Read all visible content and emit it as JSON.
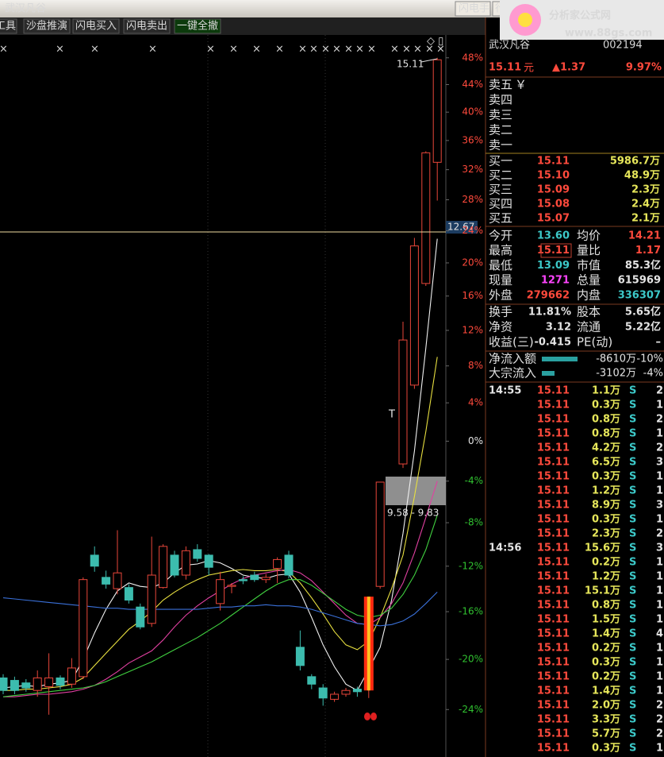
{
  "window": {
    "title": "武汉凡谷",
    "buttons": [
      "闪电手",
      "行"
    ]
  },
  "logo": {
    "name": "分析家公式网",
    "url": "www.88gs.com"
  },
  "toolbar": [
    "工具",
    "沙盘推演",
    "闪电买入",
    "闪电卖出",
    "一键全撤"
  ],
  "chart": {
    "type": "candlestick",
    "log_scale": true,
    "grid": false,
    "ylim": [
      -27.6,
      51.5
    ],
    "yticks": [
      {
        "value": 48,
        "label": "48%"
      },
      {
        "value": 44,
        "label": "44%"
      },
      {
        "value": 40,
        "label": "40%"
      },
      {
        "value": 36,
        "label": "36%"
      },
      {
        "value": 32,
        "label": "32%"
      },
      {
        "value": 28,
        "label": "28%"
      },
      {
        "value": 24,
        "label": "24%"
      },
      {
        "value": 20,
        "label": "20%"
      },
      {
        "value": 16,
        "label": "16%"
      },
      {
        "value": 12,
        "label": "12%"
      },
      {
        "value": 8,
        "label": "8%"
      },
      {
        "value": 4,
        "label": "4%"
      },
      {
        "value": 0,
        "label": "0%"
      },
      {
        "value": -4,
        "label": "-4%"
      },
      {
        "value": -8,
        "label": "-8%"
      },
      {
        "value": -12,
        "label": "-12%"
      },
      {
        "value": -16,
        "label": "-16%"
      },
      {
        "value": -20,
        "label": "-20%"
      },
      {
        "value": -24,
        "label": "-24%"
      }
    ],
    "up_color": "#e8463a",
    "down_color": "#3cbcae",
    "candles": [
      {
        "o": -21.5,
        "h": -21.2,
        "l": -22.8,
        "c": -22.5
      },
      {
        "o": -21.7,
        "h": -21.4,
        "l": -22.8,
        "c": -22.5
      },
      {
        "o": -21.9,
        "h": -21.6,
        "l": -22.6,
        "c": -22.3
      },
      {
        "o": -22.5,
        "h": -20.9,
        "l": -23.0,
        "c": -21.5
      },
      {
        "o": -22.2,
        "h": -19.5,
        "l": -24.4,
        "c": -21.5
      },
      {
        "o": -21.5,
        "h": -21.3,
        "l": -22.4,
        "c": -22.1
      },
      {
        "o": -22.0,
        "h": -19.9,
        "l": -22.3,
        "c": -20.7
      },
      {
        "o": -21.4,
        "h": -13.0,
        "l": -21.6,
        "c": -13.2
      },
      {
        "o": -11.0,
        "h": -10.2,
        "l": -12.5,
        "c": -12.0
      },
      {
        "o": -13.0,
        "h": -12.4,
        "l": -14.0,
        "c": -13.6
      },
      {
        "o": -14.0,
        "h": -8.7,
        "l": -14.5,
        "c": -12.6
      },
      {
        "o": -13.9,
        "h": -13.6,
        "l": -15.3,
        "c": -15.0
      },
      {
        "o": -15.6,
        "h": -15.3,
        "l": -17.5,
        "c": -17.3
      },
      {
        "o": -17.0,
        "h": -9.3,
        "l": -17.3,
        "c": -12.8
      },
      {
        "o": -13.9,
        "h": -10.0,
        "l": -14.0,
        "c": -10.2
      },
      {
        "o": -11.0,
        "h": -10.6,
        "l": -13.0,
        "c": -12.8
      },
      {
        "o": -12.8,
        "h": -10.2,
        "l": -13.2,
        "c": -10.6
      },
      {
        "o": -10.5,
        "h": -10.0,
        "l": -11.6,
        "c": -11.3
      },
      {
        "o": -11.0,
        "h": -10.9,
        "l": -12.8,
        "c": -12.1
      },
      {
        "o": -15.3,
        "h": -12.5,
        "l": -15.9,
        "c": -13.2
      },
      {
        "o": -13.8,
        "h": -13.5,
        "l": -14.4,
        "c": -13.7
      },
      {
        "o": -13.2,
        "h": -12.9,
        "l": -13.6,
        "c": -13.3
      },
      {
        "o": -12.8,
        "h": -12.5,
        "l": -13.4,
        "c": -13.2
      },
      {
        "o": -13.2,
        "h": -12.7,
        "l": -13.5,
        "c": -13.0
      },
      {
        "o": -12.2,
        "h": -11.2,
        "l": -13.5,
        "c": -11.4
      },
      {
        "o": -11.0,
        "h": -10.6,
        "l": -13.1,
        "c": -12.8
      },
      {
        "o": -19.0,
        "h": -17.6,
        "l": -20.9,
        "c": -20.5
      },
      {
        "o": -21.4,
        "h": -21.2,
        "l": -22.4,
        "c": -22.0
      },
      {
        "o": -22.3,
        "h": -22.0,
        "l": -23.7,
        "c": -23.1
      },
      {
        "o": -23.2,
        "h": -22.6,
        "l": -23.4,
        "c": -22.8
      },
      {
        "o": -22.8,
        "h": -22.3,
        "l": -23.0,
        "c": -22.5
      },
      {
        "o": -22.4,
        "h": -22.2,
        "l": -23.0,
        "c": -22.6
      },
      {
        "o": -22.5,
        "h": -14.7,
        "l": -23.1,
        "c": -14.7,
        "highlight": true
      },
      {
        "o": -13.8,
        "h": -4.1,
        "l": -14.0,
        "c": -4.1
      },
      null,
      {
        "o": -2.3,
        "h": 13.0,
        "l": -2.7,
        "c": 10.9
      },
      {
        "o": 5.9,
        "h": 23.1,
        "l": 5.5,
        "c": 22.1
      },
      {
        "o": 17.5,
        "h": 34.5,
        "l": 17.2,
        "c": 34.3
      },
      {
        "o": 33.0,
        "h": 48.0,
        "l": 27.9,
        "c": 47.7
      }
    ],
    "series": [
      {
        "color": "#f0f0f0",
        "values": [
          -22.3,
          -22.2,
          -22.1,
          -22.2,
          -22.0,
          -21.9,
          -21.7,
          -20.0,
          -17.8,
          -15.8,
          -14.2,
          -13.5,
          -13.8,
          -13.9,
          -13.5,
          -12.6,
          -11.9,
          -11.8,
          -11.5,
          -11.7,
          -12.2,
          -12.8,
          -13.0,
          -13.1,
          -12.8,
          -12.7,
          -14.3,
          -16.5,
          -18.8,
          -20.6,
          -22.0,
          -22.5,
          -20.8,
          -19.0,
          -15.0,
          -9.0,
          -1.0,
          10.0,
          23.0
        ]
      },
      {
        "color": "#e8e040",
        "values": [
          -22.5,
          -22.5,
          -22.4,
          -22.4,
          -22.3,
          -22.2,
          -22.0,
          -21.5,
          -20.5,
          -19.5,
          -18.5,
          -17.5,
          -16.8,
          -16.0,
          -15.0,
          -14.3,
          -13.7,
          -13.2,
          -12.8,
          -12.6,
          -12.4,
          -12.3,
          -12.4,
          -12.4,
          -12.3,
          -12.5,
          -13.5,
          -14.8,
          -16.2,
          -17.7,
          -18.8,
          -19.2,
          -18.5,
          -16.5,
          -14.0,
          -11.0,
          -5.5,
          1.0,
          9.0
        ]
      },
      {
        "color": "#e040a0",
        "values": [
          -23.0,
          -23.0,
          -22.9,
          -22.8,
          -22.8,
          -22.7,
          -22.6,
          -22.4,
          -22.1,
          -21.6,
          -21.0,
          -20.3,
          -19.8,
          -19.3,
          -18.4,
          -17.3,
          -16.3,
          -15.5,
          -14.8,
          -14.2,
          -13.6,
          -13.1,
          -12.8,
          -12.6,
          -12.4,
          -12.3,
          -12.6,
          -13.3,
          -14.3,
          -15.3,
          -16.3,
          -17.0,
          -17.1,
          -16.5,
          -15.3,
          -13.5,
          -10.8,
          -7.5,
          -4.0
        ]
      },
      {
        "color": "#40d040",
        "values": [
          -23.0,
          -22.9,
          -22.8,
          -22.7,
          -22.6,
          -22.5,
          -22.4,
          -22.3,
          -22.1,
          -21.8,
          -21.4,
          -21.0,
          -20.6,
          -20.2,
          -19.7,
          -19.2,
          -18.7,
          -18.2,
          -17.6,
          -17.0,
          -16.3,
          -15.6,
          -14.9,
          -14.2,
          -13.6,
          -13.2,
          -13.2,
          -13.7,
          -14.4,
          -15.1,
          -15.8,
          -16.3,
          -16.5,
          -16.3,
          -15.7,
          -14.5,
          -12.8,
          -10.5,
          -7.3
        ]
      },
      {
        "color": "#3a70d8",
        "values": [
          -14.8,
          -14.9,
          -15.0,
          -15.1,
          -15.2,
          -15.3,
          -15.4,
          -15.5,
          -15.6,
          -15.7,
          -15.7,
          -15.8,
          -15.8,
          -15.8,
          -15.8,
          -15.8,
          -15.8,
          -15.8,
          -15.7,
          -15.6,
          -15.6,
          -15.5,
          -15.5,
          -15.4,
          -15.5,
          -15.5,
          -15.6,
          -15.8,
          -16.1,
          -16.4,
          -16.7,
          -17.0,
          -17.1,
          -17.2,
          -17.1,
          -16.8,
          -16.2,
          -15.3,
          -14.3
        ]
      }
    ],
    "high_label": "15.11",
    "price_line_label": "12.67",
    "signal": "T",
    "range_label": "9.58 - 9.83"
  },
  "stock": {
    "name": "武汉凡谷",
    "code": "002194"
  },
  "quote": {
    "price": "15.11",
    "unit": "元",
    "change": "▲1.37",
    "pct": "9.97%"
  },
  "sell": [
    "卖五",
    "卖四",
    "卖三",
    "卖二",
    "卖一"
  ],
  "sell_icon": "￥",
  "buy": [
    [
      "买一",
      "15.11",
      "5986.7万"
    ],
    [
      "买二",
      "15.10",
      "48.9万"
    ],
    [
      "买三",
      "15.09",
      "2.3万"
    ],
    [
      "买四",
      "15.08",
      "2.4万"
    ],
    [
      "买五",
      "15.07",
      "2.1万"
    ]
  ],
  "stats": [
    [
      "今开",
      "13.60",
      "均价",
      "14.21"
    ],
    [
      "最高",
      "15.11",
      "量比",
      "1.17"
    ],
    [
      "最低",
      "13.09",
      "市值",
      "85.3亿"
    ],
    [
      "现量",
      "1271",
      "总量",
      "615969"
    ],
    [
      "外盘",
      "279662",
      "内盘",
      "336307"
    ]
  ],
  "finance": [
    [
      "换手",
      "11.81%",
      "股本",
      "5.65亿"
    ],
    [
      "净资",
      "3.12",
      "流通",
      "5.22亿"
    ],
    [
      "收益(三)",
      "-0.415",
      "PE(动)",
      "–"
    ]
  ],
  "flows": [
    [
      "净流入额",
      "-8610万",
      "-10%"
    ],
    [
      "大宗流入",
      "-3102万",
      "-4%"
    ]
  ],
  "ticks": [
    {
      "time": "14:55",
      "rows": [
        [
          "15.11",
          "1.1万",
          "S",
          "2"
        ],
        [
          "15.11",
          "0.3万",
          "S",
          "1"
        ],
        [
          "15.11",
          "0.8万",
          "S",
          "2"
        ],
        [
          "15.11",
          "0.8万",
          "S",
          "1"
        ],
        [
          "15.11",
          "4.2万",
          "S",
          "2"
        ],
        [
          "15.11",
          "6.5万",
          "S",
          "3"
        ],
        [
          "15.11",
          "0.3万",
          "S",
          "1"
        ],
        [
          "15.11",
          "1.2万",
          "S",
          "1"
        ],
        [
          "15.11",
          "8.9万",
          "S",
          "3"
        ],
        [
          "15.11",
          "0.3万",
          "S",
          "1"
        ],
        [
          "15.11",
          "2.3万",
          "S",
          "2"
        ]
      ]
    },
    {
      "time": "14:56",
      "rows": [
        [
          "15.11",
          "15.6万",
          "S",
          "3"
        ],
        [
          "15.11",
          "0.2万",
          "S",
          "1"
        ],
        [
          "15.11",
          "1.2万",
          "S",
          "1"
        ],
        [
          "15.11",
          "15.1万",
          "S",
          "1"
        ],
        [
          "15.11",
          "0.8万",
          "S",
          "1"
        ],
        [
          "15.11",
          "1.5万",
          "S",
          "1"
        ],
        [
          "15.11",
          "1.4万",
          "S",
          "4"
        ],
        [
          "15.11",
          "0.2万",
          "S",
          "1"
        ],
        [
          "15.11",
          "0.3万",
          "S",
          "1"
        ],
        [
          "15.11",
          "0.2万",
          "S",
          "1"
        ],
        [
          "15.11",
          "1.4万",
          "S",
          "1"
        ],
        [
          "15.11",
          "2.0万",
          "S",
          "2"
        ],
        [
          "15.11",
          "3.3万",
          "S",
          "2"
        ],
        [
          "15.11",
          "5.7万",
          "S",
          "2"
        ],
        [
          "15.11",
          "0.3万",
          "S",
          "1"
        ]
      ]
    }
  ]
}
